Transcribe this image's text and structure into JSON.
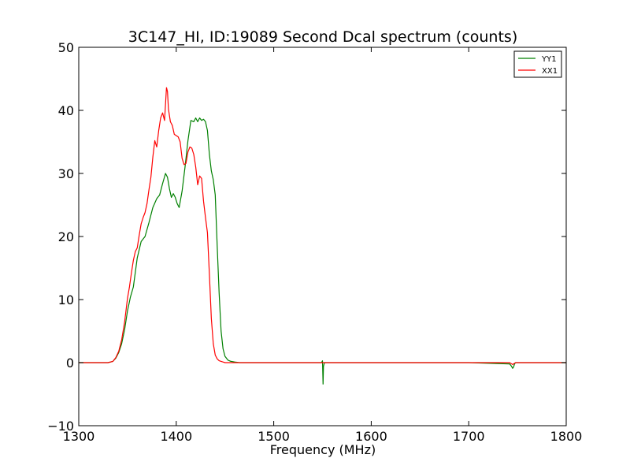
{
  "chart_data": {
    "type": "line",
    "title": "3C147_HI, ID:19089 Second Dcal spectrum (counts)",
    "xlabel": "Frequency (MHz)",
    "ylabel": "",
    "xlim": [
      1300,
      1800
    ],
    "ylim": [
      -10,
      50
    ],
    "xticks": [
      1300,
      1400,
      1500,
      1600,
      1700,
      1800
    ],
    "yticks": [
      -10,
      0,
      10,
      20,
      30,
      40,
      50
    ],
    "grid": false,
    "legend_position": "top-right",
    "series": [
      {
        "name": "YY1",
        "color": "#008000",
        "x": [
          1300,
          1330,
          1335,
          1338,
          1341,
          1344,
          1347,
          1350,
          1353,
          1356,
          1360,
          1364,
          1368,
          1372,
          1376,
          1380,
          1383,
          1386,
          1389,
          1391,
          1393,
          1395,
          1397,
          1399,
          1401,
          1403,
          1406,
          1409,
          1412,
          1415,
          1418,
          1420,
          1422,
          1424,
          1426,
          1428,
          1430,
          1432,
          1434,
          1436,
          1438,
          1440,
          1442,
          1444,
          1446,
          1448,
          1450,
          1453,
          1456,
          1460,
          1465,
          1470,
          1480,
          1500,
          1549,
          1550,
          1550.6,
          1551,
          1552,
          1600,
          1700,
          1742,
          1744,
          1745,
          1746,
          1747,
          1748,
          1760,
          1800
        ],
        "y": [
          0,
          0,
          0.2,
          0.7,
          1.6,
          3,
          5.2,
          8.2,
          10.4,
          12,
          16.6,
          19.2,
          20,
          22.2,
          24.6,
          26,
          26.6,
          28.4,
          30,
          29.4,
          27.6,
          26.2,
          26.8,
          26.2,
          25.2,
          24.6,
          27.2,
          31,
          35.2,
          38.4,
          38.2,
          38.8,
          38.2,
          38.8,
          38.4,
          38.6,
          38.2,
          36.8,
          33,
          30.4,
          29,
          26.6,
          18.5,
          11,
          5,
          2.2,
          1,
          0.4,
          0.2,
          0.1,
          0,
          0,
          0,
          0,
          0,
          0.3,
          -3.4,
          -0.6,
          0,
          0,
          0,
          -0.2,
          -0.6,
          -0.9,
          -0.7,
          -0.2,
          0,
          0,
          0
        ]
      },
      {
        "name": "XX1",
        "color": "#ff0000",
        "x": [
          1300,
          1330,
          1335,
          1338,
          1341,
          1344,
          1347,
          1350,
          1352,
          1354,
          1356,
          1358,
          1360,
          1362,
          1364,
          1366,
          1368,
          1370,
          1372,
          1374,
          1376,
          1378,
          1380,
          1382,
          1384,
          1386,
          1388,
          1390,
          1391,
          1392,
          1394,
          1396,
          1398,
          1400,
          1402,
          1404,
          1406,
          1408,
          1410,
          1412,
          1414,
          1416,
          1418,
          1420,
          1422,
          1424,
          1426,
          1428,
          1430,
          1432,
          1434,
          1436,
          1438,
          1440,
          1442,
          1444,
          1446,
          1448,
          1450,
          1453,
          1456,
          1460,
          1465,
          1470,
          1480,
          1500,
          1600,
          1700,
          1742,
          1745,
          1748,
          1800
        ],
        "y": [
          0,
          0,
          0.2,
          0.8,
          1.8,
          3.6,
          6.4,
          10.2,
          12,
          14.2,
          16.2,
          17.6,
          18.2,
          20.2,
          22,
          23,
          23.8,
          25.2,
          27.4,
          29.4,
          32.6,
          35.2,
          34.2,
          36.8,
          38.8,
          39.6,
          38.4,
          43.6,
          43,
          40.2,
          38.2,
          37.6,
          36.2,
          36,
          35.8,
          35,
          32.4,
          31.4,
          31.6,
          33.4,
          34.2,
          34,
          33,
          31,
          28.2,
          29.6,
          29.2,
          25.6,
          23,
          20.6,
          14,
          7,
          3,
          1.2,
          0.6,
          0.3,
          0.2,
          0.1,
          0,
          0,
          0,
          0,
          0,
          0,
          0,
          0,
          0,
          0,
          0,
          -0.3,
          0,
          0
        ]
      }
    ]
  }
}
